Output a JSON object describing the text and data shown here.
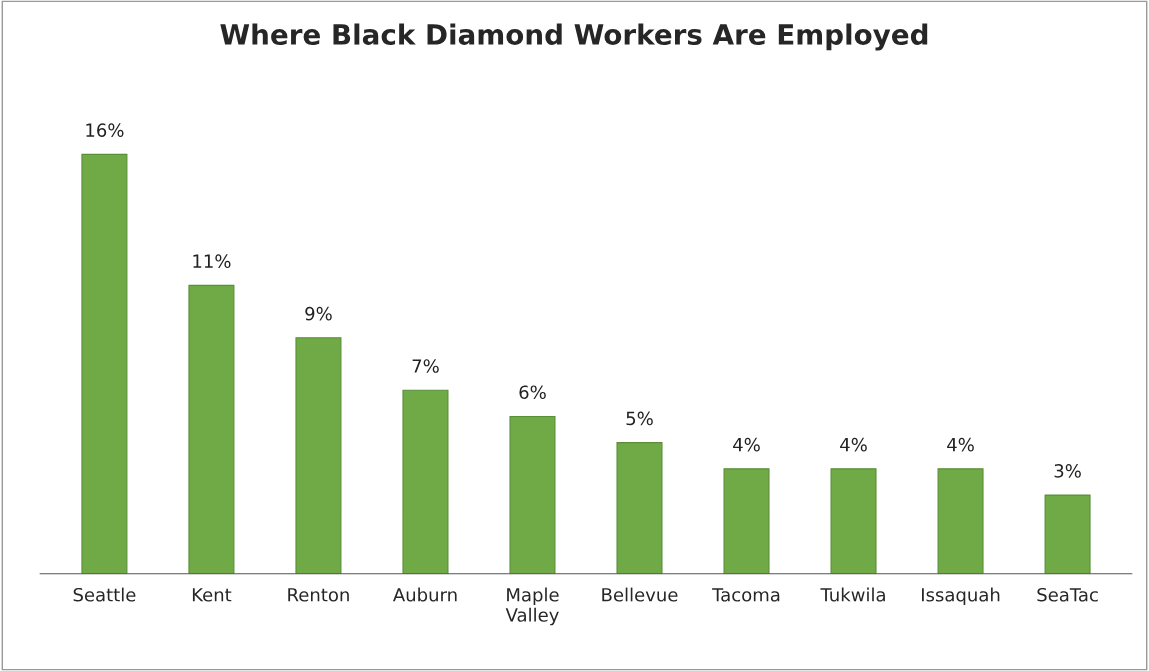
{
  "chart_data": {
    "type": "bar",
    "title": "Where Black Diamond Workers Are Employed",
    "categories": [
      "Seattle",
      "Kent",
      "Renton",
      "Auburn",
      "Maple Valley",
      "Bellevue",
      "Tacoma",
      "Tukwila",
      "Issaquah",
      "SeaTac"
    ],
    "values": [
      16,
      11,
      9,
      7,
      6,
      5,
      4,
      4,
      4,
      3
    ],
    "value_labels": [
      "16%",
      "11%",
      "9%",
      "7%",
      "6%",
      "5%",
      "4%",
      "4%",
      "4%",
      "3%"
    ],
    "color": "#6faa46",
    "grid": false,
    "legend": false,
    "tick_labels": "x"
  }
}
